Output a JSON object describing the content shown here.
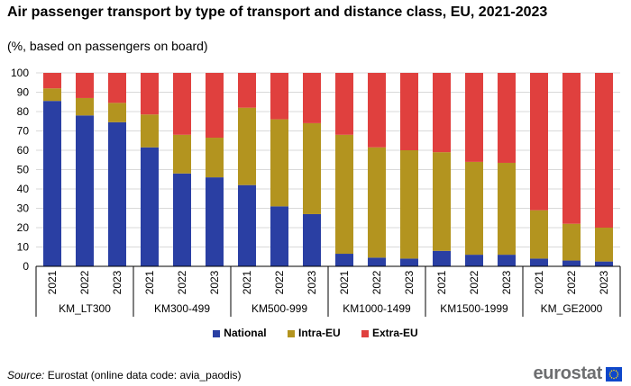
{
  "title": "Air passenger transport by type of transport and distance class, EU, 2021-2023",
  "subtitle": "(%, based on passengers on board)",
  "source_label": "Source:",
  "source_text": "Eurostat (online data code: avia_paodis)",
  "logo_text": "eurostat",
  "colors": {
    "National": "#2a3fa3",
    "Intra-EU": "#b3941f",
    "Extra-EU": "#e0403e"
  },
  "chart_data": {
    "type": "bar",
    "stacked": true,
    "ylim": [
      0,
      100
    ],
    "yticks": [
      0,
      10,
      20,
      30,
      40,
      50,
      60,
      70,
      80,
      90,
      100
    ],
    "groups": [
      "KM_LT300",
      "KM300-499",
      "KM500-999",
      "KM1000-1499",
      "KM1500-1999",
      "KM_GE2000"
    ],
    "years": [
      "2021",
      "2022",
      "2023"
    ],
    "series": [
      {
        "name": "National",
        "values": [
          85.5,
          78,
          74.5,
          61.5,
          48,
          46,
          42,
          31,
          27,
          6.5,
          4.5,
          4,
          8,
          6,
          6,
          4,
          3,
          2.5
        ]
      },
      {
        "name": "Intra-EU",
        "values": [
          6.5,
          9,
          10,
          17,
          20,
          20.5,
          40,
          45,
          47,
          61.5,
          57,
          56,
          51,
          48,
          47.5,
          25,
          19,
          17.5
        ]
      },
      {
        "name": "Extra-EU",
        "values": [
          8,
          13,
          15.5,
          21.5,
          32,
          33.5,
          18,
          24,
          26,
          32,
          38.5,
          40,
          41,
          46,
          46.5,
          71,
          78,
          80
        ]
      }
    ],
    "legend": [
      "National",
      "Intra-EU",
      "Extra-EU"
    ],
    "legend_position": "bottom",
    "grid": true
  }
}
